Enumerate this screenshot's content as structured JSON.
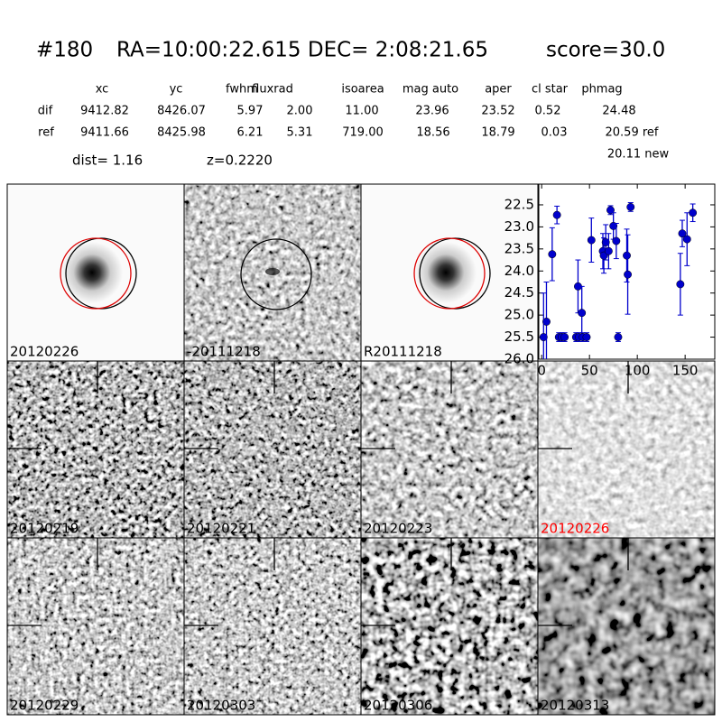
{
  "header": {
    "id": "#180",
    "coords": "RA=10:00:22.615 DEC= 2:08:21.65",
    "score": "score=30.0"
  },
  "table": {
    "columns": [
      "xc",
      "yc",
      "fwhm",
      "fluxrad",
      "isoarea",
      "mag auto",
      "aper",
      "cl star",
      "phmag"
    ],
    "rows": [
      [
        "dif",
        "9412.82",
        "8426.07",
        "5.97",
        "2.00",
        "11.00",
        "23.96",
        "23.52",
        "0.52",
        "24.48"
      ],
      [
        "ref",
        "9411.66",
        "8425.98",
        "6.21",
        "5.31",
        "719.00",
        "18.56",
        "18.79",
        "0.03",
        "20.59 ref"
      ]
    ],
    "extra": "20.11 new",
    "dist": "dist=  1.16",
    "z": "z=0.2220"
  },
  "panels": [
    {
      "label": "20120226"
    },
    {
      "label": "-20111218"
    },
    {
      "label": "R20111218"
    },
    {
      "label": "20120219"
    },
    {
      "label": "20120221"
    },
    {
      "label": "20120223"
    },
    {
      "label": "20120226",
      "color": "#ff0000"
    },
    {
      "label": "20120229"
    },
    {
      "label": "20120303"
    },
    {
      "label": "20120306"
    },
    {
      "label": "20120313"
    }
  ],
  "chart_data": {
    "type": "errorbar",
    "x": [
      2,
      5,
      11,
      16,
      18,
      21,
      24,
      36,
      38,
      39,
      42,
      43,
      47,
      52,
      64,
      65,
      67,
      70,
      72,
      75,
      78,
      80,
      89,
      90,
      93,
      145,
      147,
      152,
      158
    ],
    "series": [
      {
        "color": "#0000cc",
        "values": [
          25.5,
          25.15,
          23.62,
          22.73,
          25.5,
          25.5,
          25.5,
          25.5,
          24.35,
          25.5,
          24.95,
          25.5,
          25.5,
          23.3,
          23.55,
          23.65,
          23.35,
          23.55,
          22.62,
          22.98,
          23.32,
          25.5,
          23.65,
          24.08,
          22.55,
          24.3,
          23.15,
          23.28,
          22.68
        ],
        "errors": [
          1.0,
          0.9,
          0.6,
          0.2,
          0.1,
          0.1,
          0.1,
          0.1,
          0.6,
          0.1,
          0.6,
          0.1,
          0.1,
          0.5,
          0.4,
          0.4,
          0.4,
          0.4,
          0.1,
          0.3,
          0.4,
          0.1,
          0.6,
          0.9,
          0.1,
          0.7,
          0.3,
          0.6,
          0.2
        ]
      }
    ],
    "xlim": [
      -3,
      181
    ],
    "ylim": [
      26.0,
      22.03
    ],
    "xticks": [
      0,
      50,
      100,
      150
    ],
    "yticks": [
      22.5,
      {
        "value": 23.0,
        "label": "23.0"
      },
      23.5,
      {
        "value": 24.0,
        "label": "24.0"
      },
      24.5,
      {
        "value": 25.0,
        "label": "25.0"
      },
      25.5,
      {
        "value": 26.0,
        "label": "26.0"
      }
    ]
  }
}
